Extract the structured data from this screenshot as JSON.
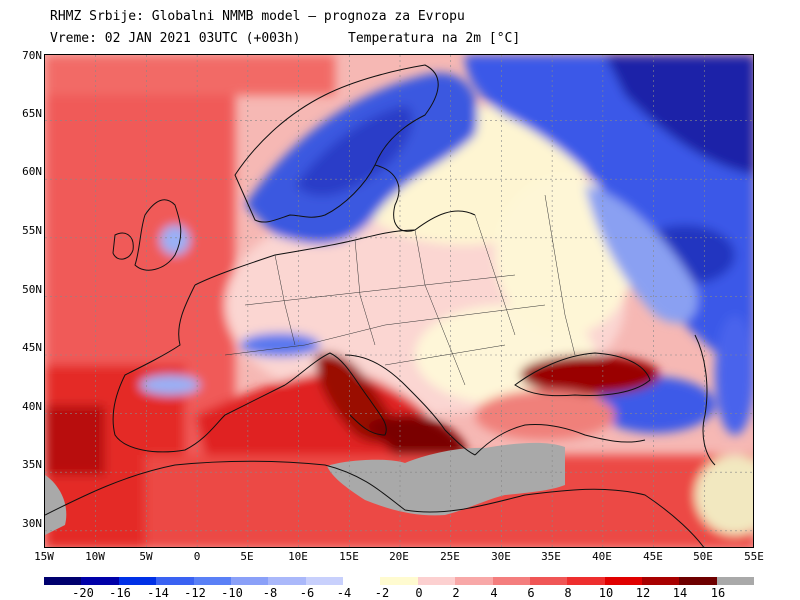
{
  "header": {
    "line1": "RHMZ Srbije: Globalni NMMB model — prognoza za Evropu",
    "line2_left": "Vreme: 02 JAN 2021 03UTC (+003h)",
    "line2_right": "Temperatura na 2m [°C]"
  },
  "map": {
    "lat_labels": [
      "70N",
      "65N",
      "60N",
      "55N",
      "50N",
      "45N",
      "40N",
      "35N",
      "30N"
    ],
    "lon_labels": [
      "15W",
      "10W",
      "5W",
      "0",
      "5E",
      "10E",
      "15E",
      "20E",
      "25E",
      "30E",
      "35E",
      "40E",
      "45E",
      "50E",
      "55E"
    ],
    "land_mask_color": "#a9a9a9"
  },
  "legend": {
    "tick_labels": [
      "-20",
      "-16",
      "-14",
      "-12",
      "-10",
      "-8",
      "-6",
      "-4",
      "-2",
      "0",
      "2",
      "4",
      "6",
      "8",
      "10",
      "12",
      "14",
      "16"
    ],
    "colors": [
      "#00006e",
      "#0000a8",
      "#0030e6",
      "#3a62f2",
      "#5a80f6",
      "#8aa0f8",
      "#aab8fa",
      "#c8d0fc",
      "#ffffff",
      "#fffbd0",
      "#fcd0d0",
      "#f8a8a8",
      "#f47e7e",
      "#f05656",
      "#ee2e2e",
      "#e00000",
      "#a80000",
      "#6e0000",
      "#a9a9a9"
    ]
  }
}
